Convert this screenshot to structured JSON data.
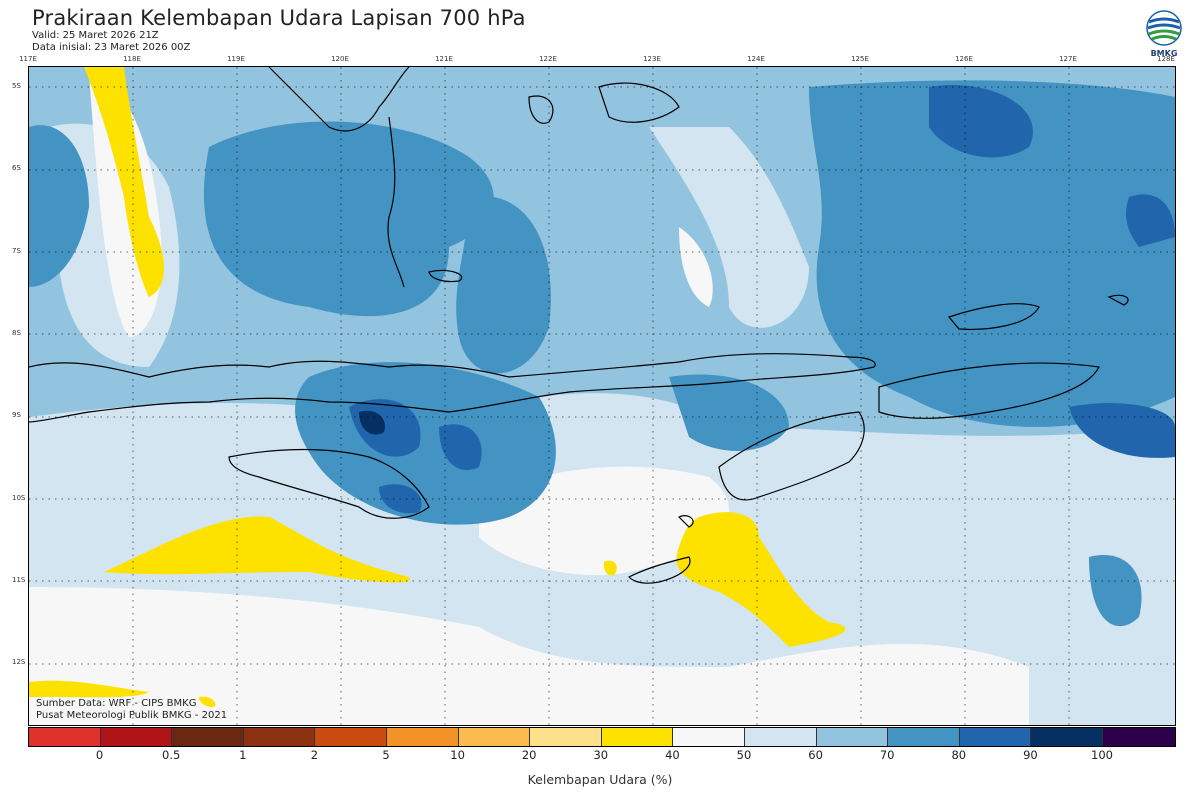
{
  "header": {
    "title": "Prakiraan Kelembapan Udara Lapisan 700 hPa",
    "valid": "Valid: 25 Maret 2026 21Z",
    "init": "Data inisial: 23 Maret 2026 00Z",
    "logo_text": "BMKG"
  },
  "map": {
    "lon_labels": [
      "117E",
      "118E",
      "119E",
      "120E",
      "121E",
      "122E",
      "123E",
      "124E",
      "125E",
      "126E",
      "127E",
      "128E"
    ],
    "lat_labels": [
      "5S",
      "6S",
      "7S",
      "8S",
      "9S",
      "10S",
      "11S",
      "12S"
    ],
    "source_line1": "Sumber Data: WRF - CIPS BMKG",
    "source_line2": "Pusat Meteorologi Publik BMKG - 2021"
  },
  "colorbar": {
    "ticks": [
      "0",
      "0.5",
      "1",
      "2",
      "5",
      "10",
      "20",
      "30",
      "40",
      "50",
      "60",
      "70",
      "80",
      "90",
      "100"
    ],
    "colors": [
      "#e0322c",
      "#b01419",
      "#6b2810",
      "#8c3212",
      "#c94b0f",
      "#f39226",
      "#fbbb4e",
      "#fde08c",
      "#fde200",
      "#f7f7f7",
      "#d2e5f0",
      "#93c4df",
      "#4393c3",
      "#2166ac",
      "#063062",
      "#2d004b"
    ],
    "label": "Kelembapan Udara (%)"
  }
}
